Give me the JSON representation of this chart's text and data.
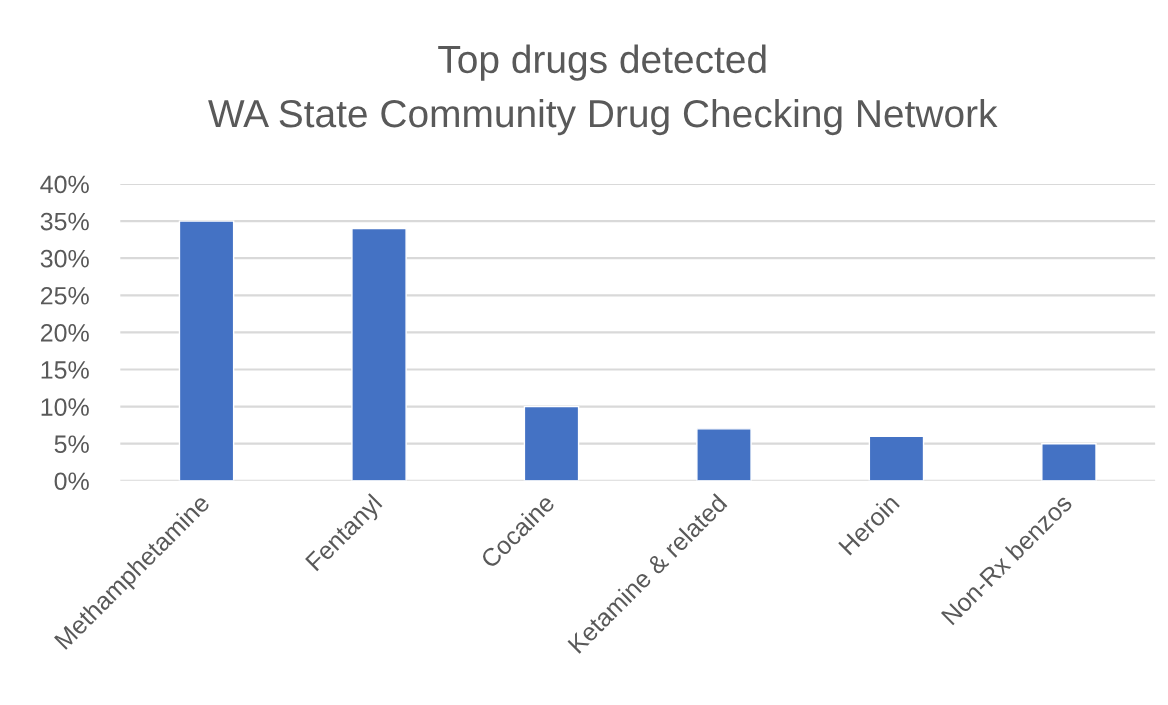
{
  "chart_data": {
    "type": "bar",
    "title": "Top drugs detected",
    "subtitle": "WA State Community Drug Checking Network",
    "categories": [
      "Methamphetamine",
      "Fentanyl",
      "Cocaine",
      "Ketamine & related",
      "Heroin",
      "Non-Rx benzos"
    ],
    "values": [
      35,
      34,
      10,
      7,
      6,
      5
    ],
    "color": "#4472c4",
    "ylim": [
      0,
      40
    ],
    "yticks": [
      {
        "value": 0,
        "label": "0%"
      },
      {
        "value": 5,
        "label": "5%"
      },
      {
        "value": 10,
        "label": "10%"
      },
      {
        "value": 15,
        "label": "15%"
      },
      {
        "value": 20,
        "label": "20%"
      },
      {
        "value": 25,
        "label": "25%"
      },
      {
        "value": 30,
        "label": "30%"
      },
      {
        "value": 35,
        "label": "35%"
      },
      {
        "value": 40,
        "label": "40%"
      }
    ],
    "grid": "y"
  }
}
